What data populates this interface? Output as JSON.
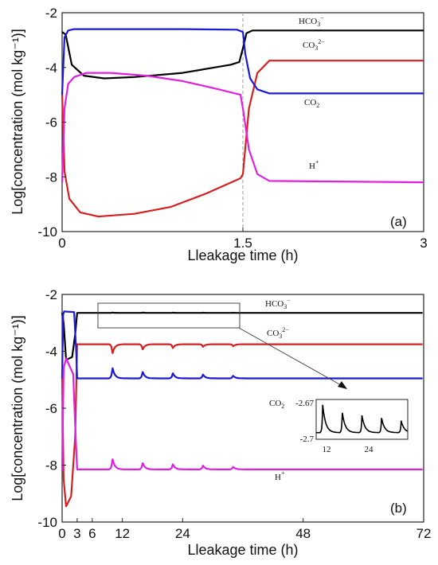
{
  "colors": {
    "HCO3": "#000000",
    "CO3": "#d42020",
    "CO2": "#1a1ad6",
    "H": "#e020e0"
  },
  "chart_data": [
    {
      "type": "line",
      "panel_label": "(a)",
      "xlabel": "Lleakage time (h)",
      "ylabel": "Log[concentration (mol kg⁻¹)]",
      "xlim": [
        0,
        3
      ],
      "ylim": [
        -10,
        -2
      ],
      "xticks": [
        "0",
        "1.5",
        "3"
      ],
      "yticks": [
        "-2",
        "-4",
        "-6",
        "-8",
        "-10"
      ],
      "vline": 1.5,
      "annotations": {
        "HCO3": {
          "base": "HCO",
          "sub": "3",
          "sup": "−"
        },
        "CO3": {
          "base": "CO",
          "sub": "3",
          "sup": "2−"
        },
        "CO2": {
          "base": "CO",
          "sub": "2",
          "sup": ""
        },
        "H": {
          "base": "H",
          "sub": "",
          "sup": "+"
        }
      },
      "series": [
        {
          "key": "HCO3",
          "x": [
            0,
            0.03,
            0.08,
            0.18,
            0.35,
            0.6,
            1.0,
            1.4,
            1.47,
            1.5,
            1.53,
            1.58,
            1.7,
            3
          ],
          "y": [
            -2.7,
            -2.8,
            -3.9,
            -4.3,
            -4.4,
            -4.35,
            -4.2,
            -3.9,
            -3.8,
            -3.3,
            -2.75,
            -2.65,
            -2.65,
            -2.65
          ]
        },
        {
          "key": "CO3",
          "x": [
            0,
            0.02,
            0.06,
            0.15,
            0.3,
            0.6,
            0.9,
            1.2,
            1.48,
            1.5,
            1.55,
            1.62,
            1.72,
            3
          ],
          "y": [
            -4.9,
            -7.8,
            -8.8,
            -9.3,
            -9.45,
            -9.35,
            -9.1,
            -8.6,
            -8.05,
            -7.9,
            -5.5,
            -4.2,
            -3.75,
            -3.75
          ]
        },
        {
          "key": "CO2",
          "x": [
            0,
            0.02,
            0.05,
            0.1,
            0.5,
            1.0,
            1.45,
            1.5,
            1.52,
            1.56,
            1.62,
            1.72,
            3
          ],
          "y": [
            -5.0,
            -2.9,
            -2.65,
            -2.6,
            -2.6,
            -2.6,
            -2.62,
            -2.7,
            -3.5,
            -4.4,
            -4.8,
            -4.95,
            -4.95
          ]
        },
        {
          "key": "H",
          "x": [
            0,
            0.02,
            0.05,
            0.1,
            0.2,
            0.4,
            0.7,
            1.0,
            1.3,
            1.48,
            1.5,
            1.55,
            1.62,
            1.72,
            3
          ],
          "y": [
            -8.2,
            -5.5,
            -4.6,
            -4.35,
            -4.2,
            -4.2,
            -4.3,
            -4.5,
            -4.8,
            -5.0,
            -5.5,
            -7.0,
            -7.9,
            -8.15,
            -8.2
          ]
        }
      ]
    },
    {
      "type": "line",
      "panel_label": "(b)",
      "xlabel": "Lleakage time (h)",
      "ylabel": "Log[concentration (mol kg⁻¹)]",
      "xlim": [
        0,
        72
      ],
      "ylim": [
        -10,
        -2
      ],
      "xticks": [
        "0",
        "3",
        "6",
        "12",
        "24",
        "48",
        "72"
      ],
      "yticks": [
        "-2",
        "-4",
        "-6",
        "-8",
        "-10"
      ],
      "peaks_x": [
        10,
        16,
        22,
        28,
        34
      ],
      "annotations": {
        "HCO3": {
          "base": "HCO",
          "sub": "3",
          "sup": "−"
        },
        "CO3": {
          "base": "CO",
          "sub": "3",
          "sup": "2−"
        },
        "CO2": {
          "base": "CO",
          "sub": "2",
          "sup": ""
        },
        "H": {
          "base": "H",
          "sub": "",
          "sup": "+"
        }
      },
      "series": [
        {
          "key": "HCO3",
          "baseline": -2.65,
          "peak_amp": [
            0.015,
            0.012,
            0.01,
            0.008,
            0.006
          ]
        },
        {
          "key": "CO3",
          "baseline": -3.75,
          "peak_amp": [
            -0.35,
            -0.2,
            -0.15,
            -0.1,
            -0.08
          ]
        },
        {
          "key": "CO2",
          "baseline": -4.95,
          "peak_amp": [
            0.4,
            0.25,
            0.2,
            0.15,
            0.1
          ]
        },
        {
          "key": "H",
          "baseline": -8.15,
          "peak_amp": [
            0.4,
            0.25,
            0.2,
            0.15,
            0.1
          ]
        }
      ],
      "inset": {
        "yticks": [
          "-2.67",
          "-2.7"
        ],
        "xticks": [
          "12",
          "24"
        ],
        "xlim": [
          8,
          36
        ],
        "ylim": [
          -2.7,
          -2.67
        ]
      }
    }
  ]
}
